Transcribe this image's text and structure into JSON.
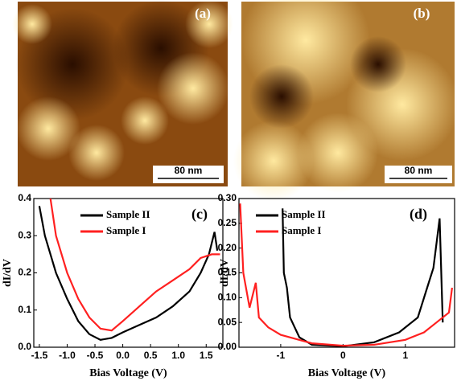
{
  "images": [
    {
      "label": "(a)",
      "scale_bar": "80 nm"
    },
    {
      "label": "(b)",
      "scale_bar": "80 nm"
    }
  ],
  "chart_data": [
    {
      "type": "line",
      "panel_label": "(c)",
      "xlabel": "Bias Voltage (V)",
      "ylabel": "dI/dV",
      "xlim": [
        -1.6,
        1.8
      ],
      "ylim": [
        0,
        0.4
      ],
      "xticks": [
        -1.5,
        {
          "value": -1,
          "label": "-1.0"
        },
        -0.5,
        {
          "value": 0,
          "label": "0.0"
        },
        0.5,
        {
          "value": 1,
          "label": "1.0"
        },
        1.5
      ],
      "yticks": [
        {
          "value": 0,
          "label": "0.0"
        },
        0.1,
        0.2,
        0.3,
        0.4
      ],
      "series": [
        {
          "name": "Sample II",
          "color": "#000000",
          "x": [
            -1.5,
            -1.4,
            -1.2,
            -1.0,
            -0.8,
            -0.6,
            -0.4,
            -0.2,
            0,
            0.3,
            0.6,
            0.9,
            1.2,
            1.4,
            1.55,
            1.65,
            1.7
          ],
          "values": [
            0.38,
            0.3,
            0.2,
            0.13,
            0.07,
            0.035,
            0.02,
            0.025,
            0.04,
            0.06,
            0.08,
            0.11,
            0.15,
            0.2,
            0.25,
            0.31,
            0.26
          ]
        },
        {
          "name": "Sample I",
          "color": "#ff2020",
          "x": [
            -1.3,
            -1.2,
            -1.0,
            -0.8,
            -0.6,
            -0.4,
            -0.2,
            0,
            0.3,
            0.6,
            0.9,
            1.2,
            1.4,
            1.6,
            1.75
          ],
          "values": [
            0.4,
            0.3,
            0.2,
            0.13,
            0.08,
            0.05,
            0.045,
            0.07,
            0.11,
            0.15,
            0.18,
            0.21,
            0.24,
            0.25,
            0.25
          ]
        }
      ]
    },
    {
      "type": "line",
      "panel_label": "(d)",
      "xlabel": "Bias Voltage (V)",
      "ylabel": "dI/dV",
      "xlim": [
        -1.67,
        1.79
      ],
      "ylim": [
        0,
        0.3
      ],
      "xticks": [
        -1,
        0,
        1
      ],
      "yticks": [
        {
          "value": 0,
          "label": "0.00"
        },
        0.05,
        {
          "value": 0.1,
          "label": "0.10"
        },
        0.15,
        {
          "value": 0.2,
          "label": "0.20"
        },
        0.25,
        {
          "value": 0.3,
          "label": "0.30"
        }
      ],
      "series": [
        {
          "name": "Sample II",
          "color": "#000000",
          "x": [
            -0.97,
            -0.95,
            -0.9,
            -0.85,
            -0.7,
            -0.5,
            0,
            0.5,
            0.9,
            1.2,
            1.35,
            1.45,
            1.55,
            1.6
          ],
          "values": [
            0.28,
            0.15,
            0.12,
            0.06,
            0.02,
            0.005,
            0.002,
            0.01,
            0.03,
            0.06,
            0.12,
            0.16,
            0.26,
            0.05
          ]
        },
        {
          "name": "Sample I",
          "color": "#ff2020",
          "x": [
            -1.65,
            -1.6,
            -1.5,
            -1.4,
            -1.35,
            -1.2,
            -1,
            -0.5,
            0,
            0.5,
            1,
            1.3,
            1.5,
            1.7,
            1.75
          ],
          "values": [
            0.29,
            0.15,
            0.08,
            0.13,
            0.06,
            0.04,
            0.025,
            0.008,
            0.003,
            0.005,
            0.015,
            0.03,
            0.05,
            0.07,
            0.12
          ]
        }
      ]
    }
  ]
}
